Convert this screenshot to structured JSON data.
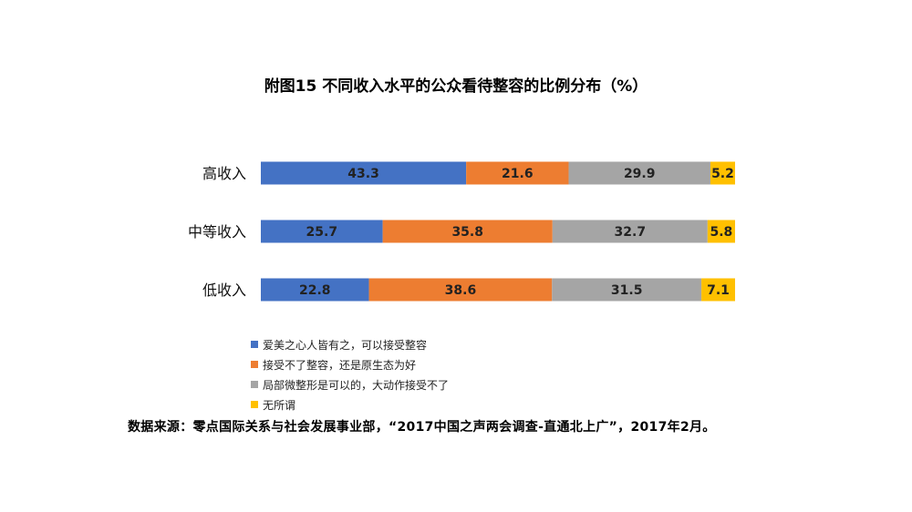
{
  "chart_data": {
    "type": "bar",
    "orientation": "horizontal",
    "stacked": true,
    "title": "附图15 不同收入水平的公众看待整容的比例分布（%）",
    "xlabel": "",
    "ylabel": "",
    "xlim": [
      0,
      100
    ],
    "grid": false,
    "legend_position": "bottom",
    "categories": [
      "高收入",
      "中等收入",
      "低收入"
    ],
    "series": [
      {
        "name": "爱美之心人皆有之，可以接受整容",
        "color": "#4472C4",
        "values": [
          43.3,
          25.7,
          22.8
        ]
      },
      {
        "name": "接受不了整容，还是原生态为好",
        "color": "#ED7D31",
        "values": [
          21.6,
          35.8,
          38.6
        ]
      },
      {
        "name": "局部微整形是可以的，大动作接受不了",
        "color": "#A5A5A5",
        "values": [
          29.9,
          32.7,
          31.5
        ]
      },
      {
        "name": "无所谓",
        "color": "#FFC000",
        "values": [
          5.2,
          5.8,
          7.1
        ]
      }
    ]
  },
  "source_note": "数据来源：零点国际关系与社会发展事业部，“2017中国之声两会调查-直通北上广”，2017年2月。"
}
